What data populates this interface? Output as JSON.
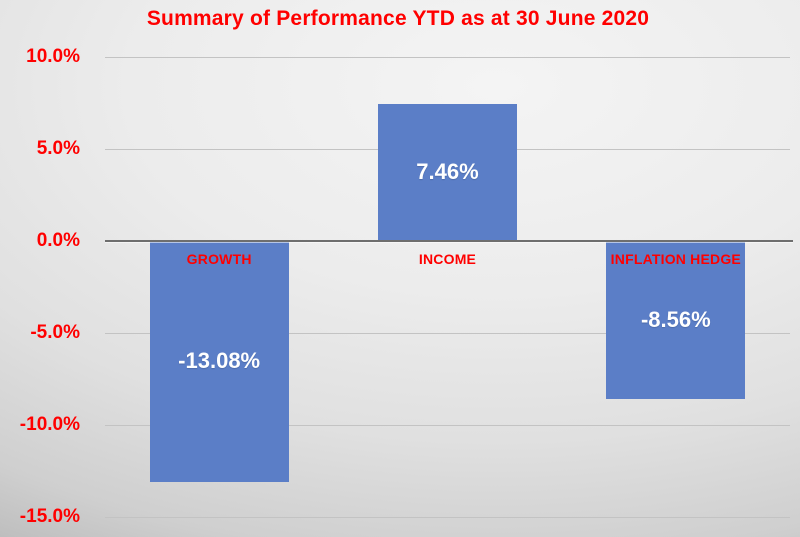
{
  "title": "Summary of Performance YTD as at 30 June 2020",
  "colors": {
    "title_text": "#FF0000",
    "tick_text": "#FF0000",
    "category_text": "#FF0000",
    "bar_fill": "#5B7EC7",
    "data_label_text": "#FFFFFF",
    "gridline": "#C3C3C3",
    "axis_line": "#6E6E6E"
  },
  "chart_data": {
    "type": "bar",
    "title": "Summary of Performance YTD as at 30 June 2020",
    "categories": [
      "GROWTH",
      "INCOME",
      "INFLATION HEDGE"
    ],
    "values": [
      -13.08,
      7.46,
      -8.56
    ],
    "data_labels": [
      "-13.08%",
      "7.46%",
      "-8.56%"
    ],
    "xlabel": "",
    "ylabel": "",
    "ylim": [
      -15,
      10
    ],
    "yticks": [
      10,
      5,
      0,
      -5,
      -10,
      -15
    ],
    "ytick_labels": [
      "10.0%",
      "5.0%",
      "0.0%",
      "-5.0%",
      "-10.0%",
      "-15.0%"
    ],
    "grid": true,
    "legend": false,
    "category_label_position": "below-zero-axis",
    "data_label_position": "inside-center"
  }
}
